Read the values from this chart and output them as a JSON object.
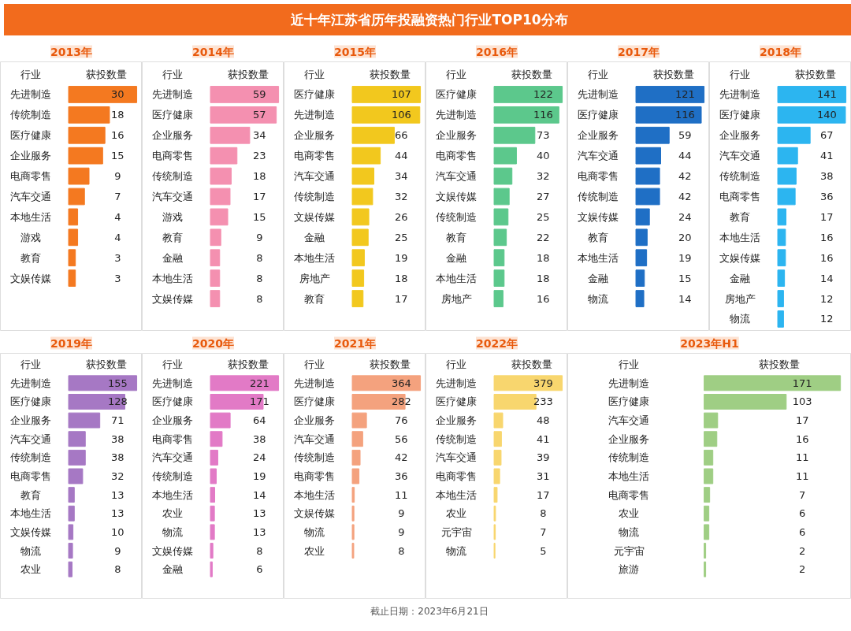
{
  "chart_data": [
    {
      "type": "other",
      "title": "近十年江苏省历年投融资热门行业TOP10分布",
      "annotations": [
        "截止日期：2023年6月21日"
      ]
    },
    {
      "type": "bar",
      "orientation": "horizontal",
      "title": "2013年",
      "ylabel": "行业",
      "xlabel": "获投数量",
      "data_labels": true,
      "color": "#f47920",
      "categories": [
        "先进制造",
        "传统制造",
        "医疗健康",
        "企业服务",
        "电商零售",
        "汽车交通",
        "本地生活",
        "游戏",
        "教育",
        "文娱传媒"
      ],
      "values": [
        30,
        18,
        16,
        15,
        9,
        7,
        4,
        4,
        3,
        3
      ]
    },
    {
      "type": "bar",
      "orientation": "horizontal",
      "title": "2014年",
      "ylabel": "行业",
      "xlabel": "获投数量",
      "data_labels": true,
      "color": "#f490b0",
      "categories": [
        "先进制造",
        "医疗健康",
        "企业服务",
        "电商零售",
        "传统制造",
        "汽车交通",
        "游戏",
        "教育",
        "金融",
        "本地生活",
        "文娱传媒"
      ],
      "values": [
        59,
        57,
        34,
        23,
        18,
        17,
        15,
        9,
        8,
        8,
        8
      ]
    },
    {
      "type": "bar",
      "orientation": "horizontal",
      "title": "2015年",
      "ylabel": "行业",
      "xlabel": "获投数量",
      "data_labels": true,
      "color": "#f2c81e",
      "categories": [
        "医疗健康",
        "先进制造",
        "企业服务",
        "电商零售",
        "汽车交通",
        "传统制造",
        "文娱传媒",
        "金融",
        "本地生活",
        "房地产",
        "教育"
      ],
      "values": [
        107,
        106,
        66,
        44,
        34,
        32,
        26,
        25,
        19,
        18,
        17
      ]
    },
    {
      "type": "bar",
      "orientation": "horizontal",
      "title": "2016年",
      "ylabel": "行业",
      "xlabel": "获投数量",
      "data_labels": true,
      "color": "#5cc88c",
      "categories": [
        "医疗健康",
        "先进制造",
        "企业服务",
        "电商零售",
        "汽车交通",
        "文娱传媒",
        "传统制造",
        "教育",
        "金融",
        "本地生活",
        "房地产"
      ],
      "values": [
        122,
        116,
        73,
        40,
        32,
        27,
        25,
        22,
        18,
        18,
        16
      ]
    },
    {
      "type": "bar",
      "orientation": "horizontal",
      "title": "2017年",
      "ylabel": "行业",
      "xlabel": "获投数量",
      "data_labels": true,
      "color": "#1f6fc5",
      "categories": [
        "先进制造",
        "医疗健康",
        "企业服务",
        "汽车交通",
        "电商零售",
        "传统制造",
        "文娱传媒",
        "教育",
        "本地生活",
        "金融",
        "物流"
      ],
      "values": [
        121,
        116,
        59,
        44,
        42,
        42,
        24,
        20,
        19,
        15,
        14
      ]
    },
    {
      "type": "bar",
      "orientation": "horizontal",
      "title": "2018年",
      "ylabel": "行业",
      "xlabel": "获投数量",
      "data_labels": true,
      "color": "#2cb5f0",
      "categories": [
        "先进制造",
        "医疗健康",
        "企业服务",
        "汽车交通",
        "传统制造",
        "电商零售",
        "教育",
        "本地生活",
        "文娱传媒",
        "金融",
        "房地产",
        "物流"
      ],
      "values": [
        141,
        140,
        67,
        41,
        38,
        36,
        17,
        16,
        16,
        14,
        12,
        12
      ]
    },
    {
      "type": "bar",
      "orientation": "horizontal",
      "title": "2019年",
      "ylabel": "行业",
      "xlabel": "获投数量",
      "data_labels": true,
      "color": "#a678c4",
      "categories": [
        "先进制造",
        "医疗健康",
        "企业服务",
        "汽车交通",
        "传统制造",
        "电商零售",
        "教育",
        "本地生活",
        "文娱传媒",
        "物流",
        "农业"
      ],
      "values": [
        155,
        128,
        71,
        38,
        38,
        32,
        13,
        13,
        10,
        9,
        8
      ]
    },
    {
      "type": "bar",
      "orientation": "horizontal",
      "title": "2020年",
      "ylabel": "行业",
      "xlabel": "获投数量",
      "data_labels": true,
      "color": "#e27ac6",
      "categories": [
        "先进制造",
        "医疗健康",
        "企业服务",
        "电商零售",
        "汽车交通",
        "传统制造",
        "本地生活",
        "农业",
        "物流",
        "文娱传媒",
        "金融"
      ],
      "values": [
        221,
        171,
        64,
        38,
        24,
        19,
        14,
        13,
        13,
        8,
        6
      ]
    },
    {
      "type": "bar",
      "orientation": "horizontal",
      "title": "2021年",
      "ylabel": "行业",
      "xlabel": "获投数量",
      "data_labels": true,
      "color": "#f4a27e",
      "categories": [
        "先进制造",
        "医疗健康",
        "企业服务",
        "汽车交通",
        "传统制造",
        "电商零售",
        "本地生活",
        "文娱传媒",
        "物流",
        "农业"
      ],
      "values": [
        364,
        282,
        76,
        56,
        42,
        36,
        11,
        9,
        9,
        8
      ]
    },
    {
      "type": "bar",
      "orientation": "horizontal",
      "title": "2022年",
      "ylabel": "行业",
      "xlabel": "获投数量",
      "data_labels": true,
      "color": "#f8d66e",
      "categories": [
        "先进制造",
        "医疗健康",
        "企业服务",
        "传统制造",
        "汽车交通",
        "电商零售",
        "本地生活",
        "农业",
        "元宇宙",
        "物流"
      ],
      "values": [
        379,
        233,
        48,
        41,
        39,
        31,
        17,
        8,
        7,
        5
      ]
    },
    {
      "type": "bar",
      "orientation": "horizontal",
      "title": "2023年H1",
      "ylabel": "行业",
      "xlabel": "获投数量",
      "data_labels": true,
      "color": "#9fce84",
      "categories": [
        "先进制造",
        "医疗健康",
        "汽车交通",
        "企业服务",
        "传统制造",
        "本地生活",
        "电商零售",
        "农业",
        "物流",
        "元宇宙",
        "旅游"
      ],
      "values": [
        171,
        103,
        17,
        16,
        11,
        11,
        7,
        6,
        6,
        2,
        2
      ]
    }
  ]
}
